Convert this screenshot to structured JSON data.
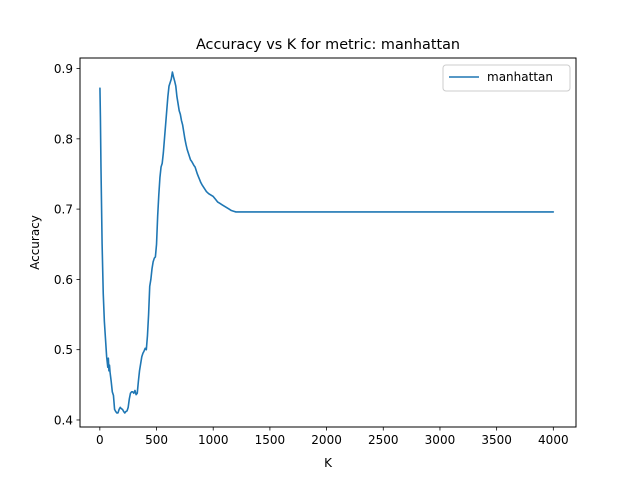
{
  "colors": {
    "series": "#1f77b4",
    "axes": "#000000",
    "legend_border": "#cccccc"
  },
  "chart_data": {
    "type": "line",
    "title": "Accuracy vs K for metric: manhattan",
    "xlabel": "K",
    "ylabel": "Accuracy",
    "xlim": [
      -175,
      4200
    ],
    "ylim": [
      0.39,
      0.915
    ],
    "grid": false,
    "legend": {
      "placement": "upper right"
    },
    "xticks": [
      0,
      500,
      1000,
      1500,
      2000,
      2500,
      3000,
      3500,
      4000
    ],
    "xtick_labels": [
      "0",
      "500",
      "1000",
      "1500",
      "2000",
      "2500",
      "3000",
      "3500",
      "4000"
    ],
    "yticks": [
      0.4,
      0.5,
      0.6,
      0.7,
      0.8,
      0.9
    ],
    "ytick_labels": [
      "0.4",
      "0.5",
      "0.6",
      "0.7",
      "0.8",
      "0.9"
    ],
    "series": [
      {
        "name": "manhattan",
        "color": "#1f77b4",
        "x": [
          1,
          5,
          10,
          20,
          30,
          40,
          50,
          60,
          70,
          75,
          80,
          85,
          90,
          100,
          110,
          120,
          130,
          140,
          150,
          160,
          170,
          180,
          190,
          200,
          210,
          220,
          230,
          240,
          250,
          260,
          270,
          280,
          290,
          300,
          310,
          320,
          330,
          340,
          350,
          360,
          370,
          380,
          390,
          400,
          410,
          420,
          430,
          440,
          450,
          460,
          470,
          480,
          490,
          500,
          510,
          520,
          530,
          540,
          550,
          560,
          570,
          580,
          590,
          600,
          610,
          620,
          630,
          640,
          650,
          660,
          670,
          680,
          690,
          700,
          710,
          720,
          730,
          740,
          750,
          760,
          770,
          780,
          790,
          800,
          810,
          820,
          830,
          840,
          850,
          860,
          870,
          880,
          890,
          900,
          920,
          940,
          960,
          980,
          1000,
          1020,
          1040,
          1060,
          1080,
          1100,
          1120,
          1140,
          1160,
          1180,
          1200,
          1220,
          1240,
          1260,
          1280,
          1300,
          1320,
          1340,
          1400,
          1500,
          2000,
          2500,
          3000,
          3500,
          4000
        ],
        "y": [
          0.872,
          0.83,
          0.76,
          0.65,
          0.58,
          0.54,
          0.515,
          0.49,
          0.475,
          0.488,
          0.47,
          0.478,
          0.468,
          0.455,
          0.44,
          0.435,
          0.415,
          0.412,
          0.41,
          0.41,
          0.415,
          0.418,
          0.416,
          0.415,
          0.412,
          0.41,
          0.412,
          0.413,
          0.418,
          0.43,
          0.438,
          0.44,
          0.44,
          0.438,
          0.442,
          0.436,
          0.438,
          0.455,
          0.47,
          0.48,
          0.49,
          0.495,
          0.498,
          0.502,
          0.5,
          0.52,
          0.55,
          0.59,
          0.6,
          0.615,
          0.625,
          0.63,
          0.632,
          0.65,
          0.69,
          0.72,
          0.745,
          0.76,
          0.765,
          0.78,
          0.8,
          0.82,
          0.84,
          0.86,
          0.875,
          0.88,
          0.885,
          0.895,
          0.888,
          0.882,
          0.875,
          0.86,
          0.85,
          0.84,
          0.835,
          0.826,
          0.82,
          0.81,
          0.8,
          0.792,
          0.785,
          0.78,
          0.775,
          0.77,
          0.768,
          0.765,
          0.762,
          0.76,
          0.755,
          0.75,
          0.746,
          0.742,
          0.738,
          0.735,
          0.73,
          0.725,
          0.722,
          0.72,
          0.718,
          0.714,
          0.71,
          0.708,
          0.706,
          0.704,
          0.702,
          0.7,
          0.698,
          0.697,
          0.696,
          0.696,
          0.696,
          0.696,
          0.696,
          0.696,
          0.696,
          0.696,
          0.696,
          0.696,
          0.696,
          0.696,
          0.696,
          0.696,
          0.696
        ]
      }
    ]
  }
}
